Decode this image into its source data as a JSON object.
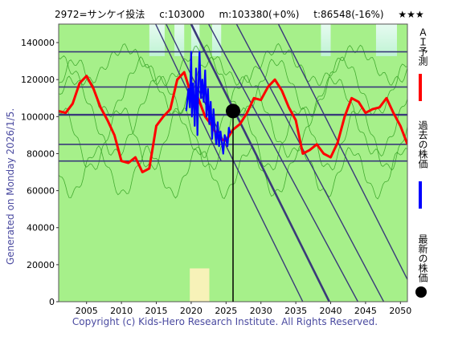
{
  "header": {
    "code_name": "2972=サンケイ投法",
    "current": "c:103000",
    "model": "m:103380(+0%)",
    "target": "t:86548(-16%)",
    "rating": "★★★"
  },
  "side_text": "Generated on Monday 2026/1/5.",
  "footer": "Copyright (c) Kids-Hero Research Institute. All Rights Reserved.",
  "legend": [
    {
      "label": "ＡＩ予測",
      "color": "#ff0000"
    },
    {
      "label": "過去の株価",
      "color": "#0000ff"
    },
    {
      "label": "最新の株価",
      "color": "#000000"
    }
  ],
  "colors": {
    "background": "#a6f08a",
    "pale": "#d4f7e8",
    "yellow": "#f7f2b8",
    "forecast": "#ff0000",
    "past": "#0000ff",
    "trend_lines": "#3a3a7a",
    "band_lines": "#2a9a1a"
  },
  "chart_data": {
    "type": "line",
    "xlim": [
      2001,
      2051
    ],
    "ylim": [
      0,
      150000
    ],
    "x_ticks": [
      2005,
      2010,
      2015,
      2020,
      2025,
      2030,
      2035,
      2040,
      2045,
      2050
    ],
    "y_ticks": [
      0,
      20000,
      40000,
      60000,
      80000,
      100000,
      120000,
      140000
    ],
    "grid": false,
    "horizontal_levels": [
      135000,
      116000,
      101000,
      85000,
      76000
    ],
    "latest_point": {
      "x": 2026.0,
      "y": 103000
    },
    "series": [
      {
        "name": "ＡＩ予測",
        "x": [
          2001,
          2002,
          2003,
          2004,
          2005,
          2006,
          2007,
          2008,
          2009,
          2010,
          2011,
          2012,
          2013,
          2014,
          2015,
          2016,
          2017,
          2018,
          2019,
          2020,
          2021,
          2022,
          2023,
          2024,
          2025,
          2026,
          2027,
          2028,
          2029,
          2030,
          2031,
          2032,
          2033,
          2034,
          2035,
          2036,
          2037,
          2038,
          2039,
          2040,
          2041,
          2042,
          2043,
          2044,
          2045,
          2046,
          2047,
          2048,
          2049,
          2050,
          2051
        ],
        "values": [
          103000,
          102000,
          107000,
          118000,
          122000,
          115000,
          105000,
          98000,
          90000,
          76000,
          75000,
          78000,
          70000,
          72000,
          95000,
          100000,
          104000,
          120000,
          124000,
          112000,
          110000,
          100000,
          95000,
          88000,
          87000,
          93000,
          96000,
          102000,
          110000,
          109000,
          116000,
          120000,
          114000,
          105000,
          98000,
          80000,
          82000,
          85000,
          80000,
          78000,
          86000,
          100000,
          110000,
          108000,
          102000,
          104000,
          105000,
          110000,
          102000,
          95000,
          85000
        ]
      },
      {
        "name": "過去の株価",
        "x": [
          2019.3,
          2019.6,
          2019.8,
          2020.0,
          2020.1,
          2020.3,
          2020.5,
          2020.7,
          2020.9,
          2021.0,
          2021.2,
          2021.4,
          2021.6,
          2021.8,
          2022.0,
          2022.2,
          2022.4,
          2022.6,
          2022.8,
          2023.0,
          2023.2,
          2023.4,
          2023.6,
          2023.8,
          2024.0,
          2024.2,
          2024.4,
          2024.6,
          2024.8,
          2025.0,
          2025.2,
          2025.4,
          2025.6
        ],
        "values": [
          103000,
          115000,
          105000,
          135000,
          100000,
          118000,
          95000,
          126000,
          90000,
          112000,
          135000,
          110000,
          120000,
          108000,
          125000,
          100000,
          115000,
          96000,
          108000,
          88000,
          104000,
          92000,
          85000,
          97000,
          84000,
          92000,
          86000,
          80000,
          90000,
          88000,
          84000,
          94000,
          91000
        ]
      }
    ],
    "trend_lines": [
      {
        "from": [
          2014.9,
          150000
        ],
        "to": [
          2024.3,
          76000
        ]
      },
      {
        "from": [
          2016.4,
          150000
        ],
        "to": [
          2036.0,
          0
        ]
      },
      {
        "from": [
          2020.0,
          150000
        ],
        "to": [
          2039.8,
          0
        ]
      },
      {
        "from": [
          2022.5,
          150000
        ],
        "to": [
          2043.9,
          0
        ]
      },
      {
        "from": [
          2026.5,
          150000
        ],
        "to": [
          2047.6,
          0
        ]
      },
      {
        "from": [
          2032.5,
          150000
        ],
        "to": [
          2051.0,
          12000
        ]
      }
    ]
  }
}
